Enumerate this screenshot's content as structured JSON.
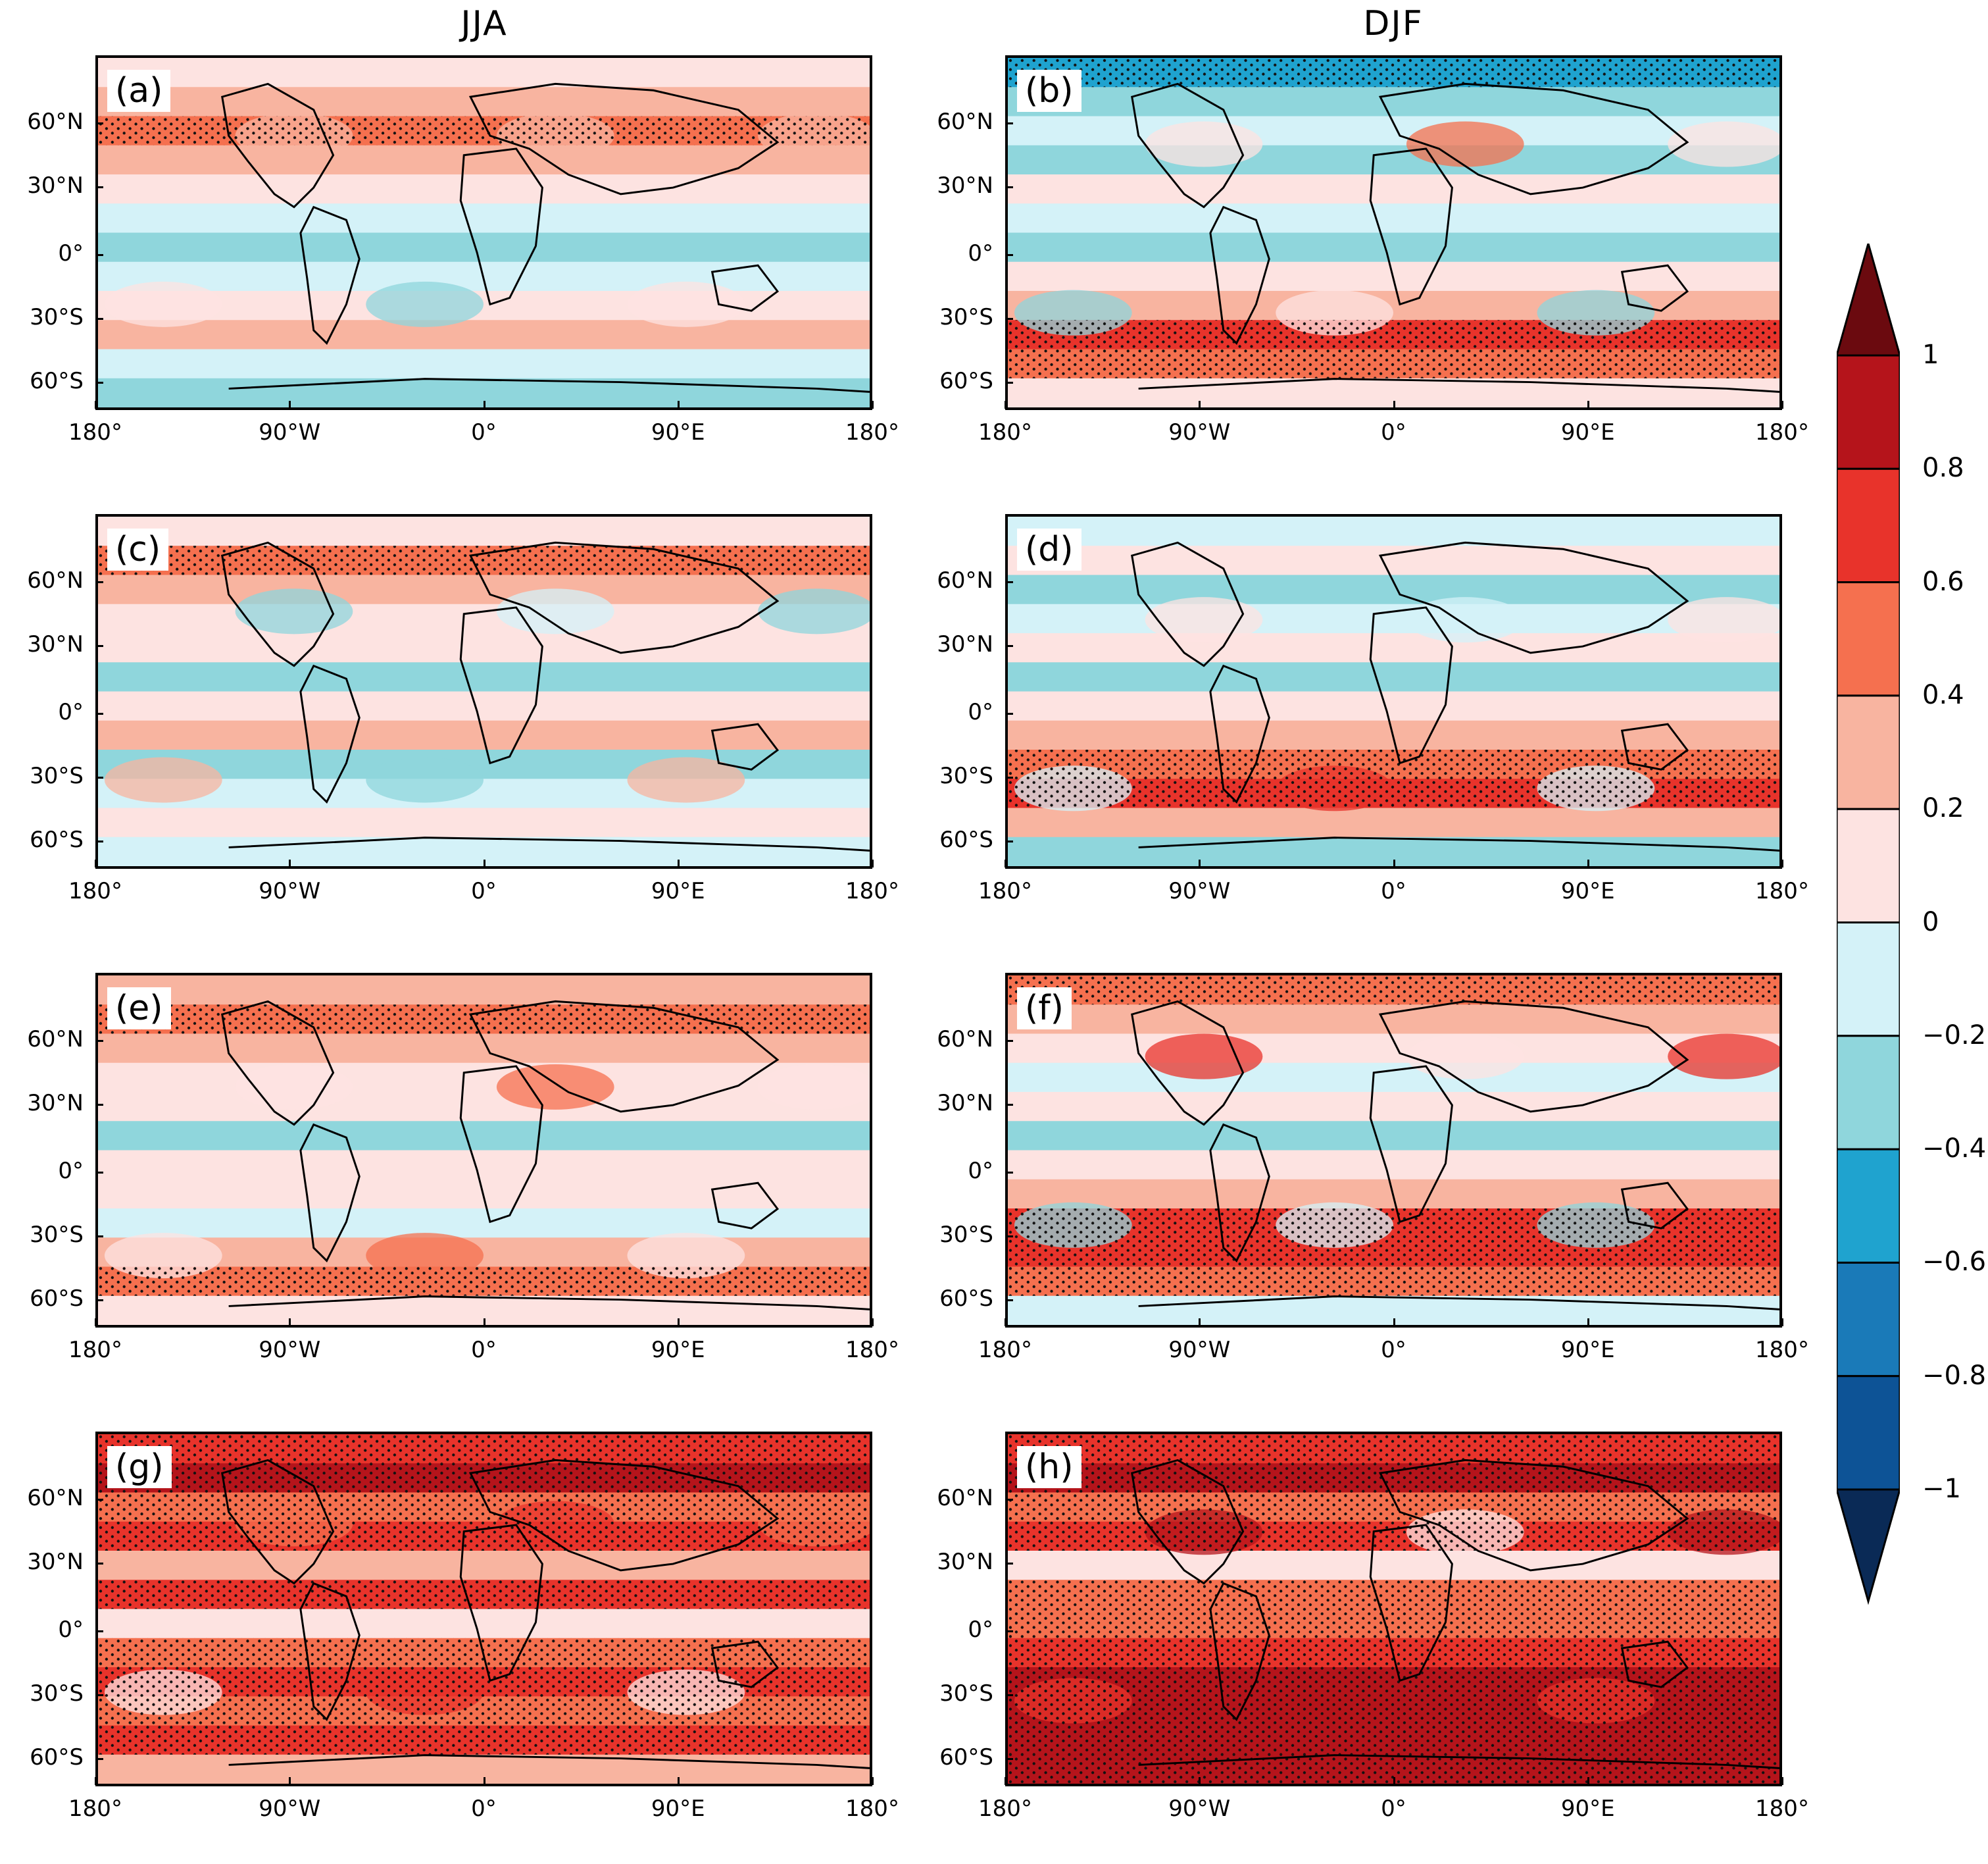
{
  "column_titles": [
    "JJA",
    "DJF"
  ],
  "panels": [
    {
      "label": "(a)",
      "season": "JJA"
    },
    {
      "label": "(b)",
      "season": "DJF"
    },
    {
      "label": "(c)",
      "season": "JJA"
    },
    {
      "label": "(d)",
      "season": "DJF"
    },
    {
      "label": "(e)",
      "season": "JJA"
    },
    {
      "label": "(f)",
      "season": "DJF"
    },
    {
      "label": "(g)",
      "season": "JJA"
    },
    {
      "label": "(h)",
      "season": "DJF"
    }
  ],
  "lat_ticks": [
    "60°N",
    "30°N",
    "0°",
    "30°S",
    "60°S"
  ],
  "lon_ticks": [
    "180°",
    "90°W",
    "0°",
    "90°E",
    "180°"
  ],
  "colorbar": {
    "levels": [
      "1",
      "0.8",
      "0.6",
      "0.4",
      "0.2",
      "0",
      "−0.2",
      "−0.4",
      "−0.6",
      "−0.8",
      "−1"
    ],
    "colors_top_to_bottom": [
      "#6b0a0f",
      "#b5141b",
      "#e8332b",
      "#f5704f",
      "#f8b4a0",
      "#fde3e1",
      "#d4f2f8",
      "#8fd6dc",
      "#1fa3cf",
      "#1a7ab8",
      "#0d5396",
      "#0a2a56"
    ]
  },
  "colors": {
    "c_m08": "#0d5396",
    "c_m06": "#1a7ab8",
    "c_m04": "#1fa3cf",
    "c_m02": "#8fd6dc",
    "c_00": "#d4f2f8",
    "c_02": "#fde3e1",
    "c_04": "#f8b4a0",
    "c_06": "#f5704f",
    "c_08": "#e8332b",
    "c_10": "#b5141b"
  }
}
